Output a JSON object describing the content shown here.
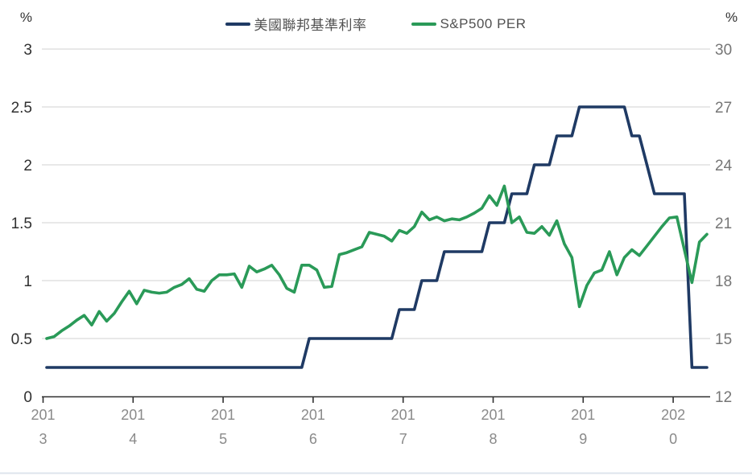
{
  "chart": {
    "background": "#ffffff",
    "gridline_color": "#d9d9d9",
    "axis_color": "#2f2f2f",
    "bottom_border_color": "#dee4ec",
    "left_label_color": "#303030",
    "right_label_color": "#767676",
    "x_label_color": "#8a8a8a",
    "legend_text_color": "#515151"
  },
  "chart_data": {
    "type": "line",
    "frequency": "monthly",
    "x_start": "2013-01",
    "x_end": "2020-05",
    "x_tick_labels": [
      "2013",
      "2014",
      "2015",
      "2016",
      "2017",
      "2018",
      "2019",
      "2020"
    ],
    "grid": true,
    "legend_position": "top",
    "axis_left": {
      "unit": "%",
      "min": 0,
      "max": 3,
      "ticks": [
        "0",
        "0.5",
        "1",
        "1.5",
        "2",
        "2.5",
        "3"
      ]
    },
    "axis_right": {
      "unit": "%",
      "min": 12,
      "max": 30,
      "ticks": [
        "12",
        "15",
        "18",
        "21",
        "24",
        "27",
        "30"
      ]
    },
    "series": [
      {
        "name": "美國聯邦基準利率",
        "axis": "left",
        "color": "#1f3a64",
        "values": [
          0.25,
          0.25,
          0.25,
          0.25,
          0.25,
          0.25,
          0.25,
          0.25,
          0.25,
          0.25,
          0.25,
          0.25,
          0.25,
          0.25,
          0.25,
          0.25,
          0.25,
          0.25,
          0.25,
          0.25,
          0.25,
          0.25,
          0.25,
          0.25,
          0.25,
          0.25,
          0.25,
          0.25,
          0.25,
          0.25,
          0.25,
          0.25,
          0.25,
          0.25,
          0.25,
          0.5,
          0.5,
          0.5,
          0.5,
          0.5,
          0.5,
          0.5,
          0.5,
          0.5,
          0.5,
          0.5,
          0.5,
          0.75,
          0.75,
          0.75,
          1,
          1,
          1,
          1.25,
          1.25,
          1.25,
          1.25,
          1.25,
          1.25,
          1.5,
          1.5,
          1.5,
          1.75,
          1.75,
          1.75,
          2,
          2,
          2,
          2.25,
          2.25,
          2.25,
          2.5,
          2.5,
          2.5,
          2.5,
          2.5,
          2.5,
          2.5,
          2.25,
          2.25,
          2,
          1.75,
          1.75,
          1.75,
          1.75,
          1.75,
          0.25,
          0.25,
          0.25
        ]
      },
      {
        "name": "S&P500 PER",
        "axis": "right",
        "color": "#2a9a58",
        "values": [
          15.0,
          15.1,
          15.4,
          15.65,
          15.95,
          16.2,
          15.7,
          16.4,
          15.9,
          16.3,
          16.9,
          17.45,
          16.8,
          17.5,
          17.4,
          17.35,
          17.4,
          17.65,
          17.8,
          18.1,
          17.55,
          17.45,
          18.0,
          18.3,
          18.3,
          18.35,
          17.65,
          18.75,
          18.45,
          18.6,
          18.8,
          18.3,
          17.6,
          17.4,
          18.8,
          18.8,
          18.55,
          17.65,
          17.7,
          19.35,
          19.45,
          19.6,
          19.75,
          20.5,
          20.4,
          20.3,
          20.05,
          20.6,
          20.45,
          20.8,
          21.55,
          21.15,
          21.3,
          21.1,
          21.2,
          21.15,
          21.3,
          21.5,
          21.75,
          22.4,
          21.9,
          22.9,
          21.0,
          21.3,
          20.5,
          20.45,
          20.8,
          20.35,
          21.1,
          19.9,
          19.2,
          16.65,
          17.75,
          18.4,
          18.55,
          19.5,
          18.3,
          19.2,
          19.6,
          19.3,
          19.8,
          20.3,
          20.8,
          21.25,
          21.3,
          19.6,
          17.9,
          20.0,
          20.4
        ]
      }
    ]
  }
}
